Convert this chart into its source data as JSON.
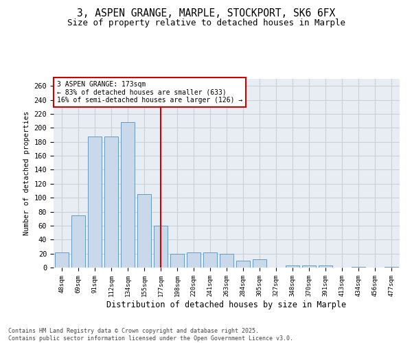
{
  "title_line1": "3, ASPEN GRANGE, MARPLE, STOCKPORT, SK6 6FX",
  "title_line2": "Size of property relative to detached houses in Marple",
  "xlabel": "Distribution of detached houses by size in Marple",
  "ylabel": "Number of detached properties",
  "bar_color": "#c9d9ea",
  "bar_edge_color": "#6699bb",
  "vline_color": "#cc0000",
  "annotation_title": "3 ASPEN GRANGE: 173sqm",
  "annotation_line2": "← 83% of detached houses are smaller (633)",
  "annotation_line3": "16% of semi-detached houses are larger (126) →",
  "annotation_box_color": "#cc0000",
  "categories": [
    "48sqm",
    "69sqm",
    "91sqm",
    "112sqm",
    "134sqm",
    "155sqm",
    "177sqm",
    "198sqm",
    "220sqm",
    "241sqm",
    "263sqm",
    "284sqm",
    "305sqm",
    "327sqm",
    "348sqm",
    "370sqm",
    "391sqm",
    "413sqm",
    "434sqm",
    "456sqm",
    "477sqm"
  ],
  "values": [
    22,
    75,
    188,
    188,
    208,
    105,
    60,
    20,
    22,
    22,
    20,
    10,
    12,
    0,
    3,
    3,
    3,
    0,
    1,
    0,
    1
  ],
  "vline_bin_index": 6,
  "ylim": [
    0,
    270
  ],
  "yticks": [
    0,
    20,
    40,
    60,
    80,
    100,
    120,
    140,
    160,
    180,
    200,
    220,
    240,
    260
  ],
  "grid_color": "#c8d0d8",
  "background_color": "#e8edf4",
  "footer_line1": "Contains HM Land Registry data © Crown copyright and database right 2025.",
  "footer_line2": "Contains public sector information licensed under the Open Government Licence v3.0."
}
